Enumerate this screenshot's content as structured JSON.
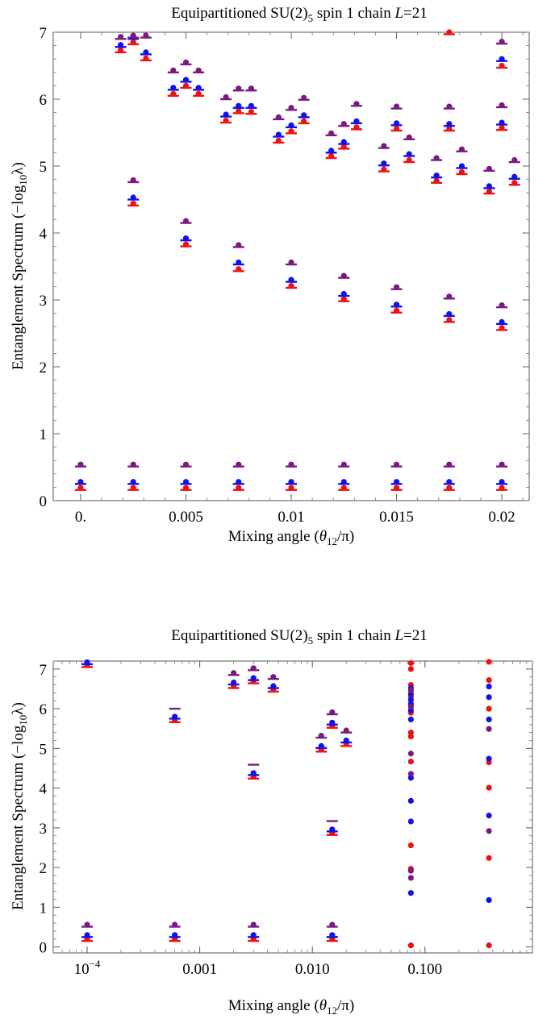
{
  "chart_data": [
    {
      "type": "scatter",
      "title": "Equipartitioned SU(2)₅ spin 1 chain L=21",
      "title_parts": {
        "prefix": "Equipartitioned SU(2)",
        "sub": "5",
        "middle": " spin 1 chain ",
        "italic": "L",
        "suffix": "=21"
      },
      "xlabel": "Mixing angle (θ₁₂/π)",
      "xlabel_parts": {
        "prefix": "Mixing angle (",
        "theta": "θ",
        "sub": "12",
        "suffix": "/π)"
      },
      "ylabel": "Entanglement Spectrum (−log₁₀λ)",
      "ylabel_parts": {
        "prefix": "Entanglement  Spectrum (−log",
        "sub": "10",
        "suffix": "λ)"
      },
      "xscale": "linear",
      "xlim": [
        -0.0013,
        0.0213
      ],
      "ylim": [
        0,
        7
      ],
      "grid": false,
      "xticks": [
        {
          "value": 0,
          "label": "0."
        },
        {
          "value": 0.005,
          "label": "0.005"
        },
        {
          "value": 0.01,
          "label": "0.01"
        },
        {
          "value": 0.015,
          "label": "0.015"
        },
        {
          "value": 0.02,
          "label": "0.02"
        }
      ],
      "yticks": [
        {
          "value": 0,
          "label": "0"
        },
        {
          "value": 1,
          "label": "1"
        },
        {
          "value": 2,
          "label": "2"
        },
        {
          "value": 3,
          "label": "3"
        },
        {
          "value": 4,
          "label": "4"
        },
        {
          "value": 5,
          "label": "5"
        },
        {
          "value": 6,
          "label": "6"
        },
        {
          "value": 7,
          "label": "7"
        }
      ],
      "colors": {
        "red": "#ee1111",
        "blue": "#1111ee",
        "purple": "#7a1a80"
      },
      "markers": {
        "red": "dot-dash",
        "blue": "dot-dash",
        "purple": "dot-dash"
      },
      "series": [
        {
          "color": "red",
          "x": [
            0,
            0.0025,
            0.005,
            0.0075,
            0.01,
            0.0125,
            0.015,
            0.0175,
            0.02
          ],
          "y": [
            0.16,
            0.16,
            0.16,
            0.16,
            0.16,
            0.16,
            0.16,
            0.16,
            0.16
          ]
        },
        {
          "color": "blue",
          "x": [
            0,
            0.0025,
            0.005,
            0.0075,
            0.01,
            0.0125,
            0.015,
            0.0175,
            0.02
          ],
          "y": [
            0.25,
            0.25,
            0.25,
            0.25,
            0.25,
            0.25,
            0.25,
            0.25,
            0.25
          ]
        },
        {
          "color": "purple",
          "x": [
            0,
            0.0025,
            0.005,
            0.0075,
            0.01,
            0.0125,
            0.015,
            0.0175,
            0.02
          ],
          "y": [
            0.51,
            0.51,
            0.51,
            0.51,
            0.51,
            0.51,
            0.51,
            0.51,
            0.51
          ]
        },
        {
          "color": "red",
          "x": [
            0.0025,
            0.005,
            0.0075,
            0.01,
            0.0125,
            0.015,
            0.0175,
            0.02
          ],
          "y": [
            4.41,
            3.8,
            3.43,
            3.18,
            2.98,
            2.81,
            2.67,
            2.55
          ]
        },
        {
          "color": "blue",
          "x": [
            0.0025,
            0.005,
            0.0075,
            0.01,
            0.0125,
            0.015,
            0.0175,
            0.02
          ],
          "y": [
            4.5,
            3.89,
            3.53,
            3.27,
            3.06,
            2.9,
            2.76,
            2.64
          ]
        },
        {
          "color": "purple",
          "x": [
            0.0025,
            0.005,
            0.0075,
            0.01,
            0.0125,
            0.015,
            0.0175,
            0.02
          ],
          "y": [
            4.76,
            4.15,
            3.79,
            3.53,
            3.33,
            3.16,
            3.02,
            2.89
          ]
        },
        {
          "color": "red",
          "x": [
            0.0019,
            0.0044,
            0.0069,
            0.0094,
            0.0119,
            0.0144,
            0.0169,
            0.0194
          ],
          "y": [
            6.7,
            6.05,
            5.65,
            5.35,
            5.12,
            4.92,
            4.75,
            4.59
          ]
        },
        {
          "color": "blue",
          "x": [
            0.0019,
            0.0044,
            0.0069,
            0.0094,
            0.0119,
            0.0144,
            0.0169,
            0.0194
          ],
          "y": [
            6.78,
            6.14,
            5.74,
            5.44,
            5.2,
            5.01,
            4.83,
            4.67
          ]
        },
        {
          "color": "purple",
          "x": [
            0.0019,
            0.0044,
            0.0069,
            0.0094,
            0.0119,
            0.0144,
            0.0169,
            0.0194
          ],
          "y": [
            6.9,
            6.4,
            6.0,
            5.7,
            5.46,
            5.27,
            5.09,
            4.93
          ]
        },
        {
          "color": "red",
          "x": [
            0.0025,
            0.005,
            0.0075,
            0.01,
            0.0125,
            0.015,
            0.0175,
            0.02
          ],
          "y": [
            6.82,
            6.17,
            5.79,
            5.49,
            5.26,
            5.53,
            5.53,
            5.54
          ]
        },
        {
          "color": "blue",
          "x": [
            0.0025,
            0.005,
            0.0075,
            0.01,
            0.0125,
            0.015,
            0.0175,
            0.02
          ],
          "y": [
            6.9,
            6.26,
            5.87,
            5.58,
            5.33,
            5.61,
            5.6,
            5.62
          ]
        },
        {
          "color": "purple",
          "x": [
            0.0025,
            0.005,
            0.0075,
            0.01,
            0.0125,
            0.015,
            0.0175,
            0.02
          ],
          "y": [
            6.92,
            6.52,
            6.13,
            5.84,
            5.6,
            5.86,
            5.86,
            5.88
          ]
        },
        {
          "color": "red",
          "x": [
            0.0031,
            0.0056,
            0.0081,
            0.0106,
            0.0131,
            0.0156,
            0.0181,
            0.0206
          ],
          "y": [
            6.58,
            6.05,
            5.78,
            5.64,
            5.55,
            5.06,
            4.88,
            4.72
          ]
        },
        {
          "color": "blue",
          "x": [
            0.0031,
            0.0056,
            0.0081,
            0.0106,
            0.0131,
            0.0156,
            0.0181,
            0.0206
          ],
          "y": [
            6.67,
            6.14,
            5.87,
            5.73,
            5.64,
            5.15,
            4.97,
            4.81
          ]
        },
        {
          "color": "purple",
          "x": [
            0.0031,
            0.0056,
            0.0081,
            0.0106,
            0.0131,
            0.0156,
            0.0181,
            0.0206
          ],
          "y": [
            6.92,
            6.4,
            6.13,
            5.99,
            5.9,
            5.4,
            5.22,
            5.06
          ]
        },
        {
          "color": "red",
          "x": [
            0.0175,
            0.02
          ],
          "y": [
            6.97,
            6.47
          ]
        },
        {
          "color": "blue",
          "x": [
            0.02
          ],
          "y": [
            6.57
          ]
        },
        {
          "color": "purple",
          "x": [
            0.02
          ],
          "y": [
            6.83
          ]
        }
      ]
    },
    {
      "type": "scatter",
      "title": "Equipartitioned SU(2)₅ spin 1 chain L=21",
      "title_parts": {
        "prefix": "Equipartitioned SU(2)",
        "sub": "5",
        "middle": " spin 1 chain ",
        "italic": "L",
        "suffix": "=21"
      },
      "xlabel": "Mixing angle (θ₁₂/π)",
      "xlabel_parts": {
        "prefix": "Mixing angle (",
        "theta": "θ",
        "sub": "12",
        "suffix": "/π)"
      },
      "ylabel": "Entanglement Spectrum (−log₁₀λ)",
      "ylabel_parts": {
        "prefix": "Entanglement  Spectrum (−log",
        "sub": "10",
        "suffix": "λ)"
      },
      "xscale": "log",
      "xlim": [
        5e-05,
        0.9
      ],
      "ylim": [
        -0.15,
        7.2
      ],
      "grid": false,
      "xticks": [
        {
          "value": 0.0001,
          "label": "10",
          "sup": "−4"
        },
        {
          "value": 0.001,
          "label": "0.001"
        },
        {
          "value": 0.01,
          "label": "0.010"
        },
        {
          "value": 0.1,
          "label": "0.100"
        }
      ],
      "yticks": [
        {
          "value": 0,
          "label": "0"
        },
        {
          "value": 1,
          "label": "1"
        },
        {
          "value": 2,
          "label": "2"
        },
        {
          "value": 3,
          "label": "3"
        },
        {
          "value": 4,
          "label": "4"
        },
        {
          "value": 5,
          "label": "5"
        },
        {
          "value": 6,
          "label": "6"
        },
        {
          "value": 7,
          "label": "7"
        }
      ],
      "colors": {
        "red": "#ee1111",
        "blue": "#1111ee",
        "purple": "#7a1a80"
      },
      "series": [
        {
          "color": "red",
          "marker": "dot-dash",
          "x": [
            0.0001,
            0.0006,
            0.003,
            0.015
          ],
          "y": [
            0.15,
            0.15,
            0.15,
            0.15
          ]
        },
        {
          "color": "blue",
          "marker": "dot-dash",
          "x": [
            0.0001,
            0.0006,
            0.003,
            0.015
          ],
          "y": [
            0.25,
            0.25,
            0.25,
            0.25
          ]
        },
        {
          "color": "purple",
          "marker": "dot-dash",
          "x": [
            0.0001,
            0.0006,
            0.003,
            0.015
          ],
          "y": [
            0.51,
            0.51,
            0.51,
            0.51
          ]
        },
        {
          "color": "red",
          "marker": "dot-dash",
          "x": [
            0.0001,
            0.0006,
            0.002,
            0.003,
            0.0045,
            0.012,
            0.015,
            0.02
          ],
          "y": [
            7.05,
            5.66,
            6.52,
            6.64,
            6.43,
            4.92,
            5.52,
            5.06
          ]
        },
        {
          "color": "blue",
          "marker": "dot-dash",
          "x": [
            0.0001,
            0.0006,
            0.002,
            0.003,
            0.0045,
            0.012,
            0.015,
            0.02
          ],
          "y": [
            7.12,
            5.75,
            6.61,
            6.72,
            6.52,
            5.01,
            5.6,
            5.15
          ]
        },
        {
          "color": "purple",
          "marker": "dot-dash",
          "x": [
            0.002,
            0.003,
            0.0045,
            0.012,
            0.015,
            0.02
          ],
          "y": [
            6.85,
            6.97,
            6.75,
            5.27,
            5.86,
            5.4
          ]
        },
        {
          "color": "purple",
          "marker": "dash",
          "x": [
            0.0006
          ],
          "y": [
            6.0
          ]
        },
        {
          "color": "red",
          "marker": "dot-dash",
          "x": [
            0.003,
            0.015
          ],
          "y": [
            4.24,
            2.82
          ]
        },
        {
          "color": "blue",
          "marker": "dot-dash",
          "x": [
            0.003,
            0.015
          ],
          "y": [
            4.33,
            2.91
          ]
        },
        {
          "color": "purple",
          "marker": "dash",
          "x": [
            0.003,
            0.015
          ],
          "y": [
            4.59,
            3.17
          ]
        },
        {
          "color": "red",
          "marker": "dot",
          "x": [
            0.075,
            0.075,
            0.075,
            0.075,
            0.075,
            0.075,
            0.075,
            0.075,
            0.075,
            0.075,
            0.075
          ],
          "y": [
            0.04,
            1.97,
            2.56,
            4.67,
            5.3,
            5.4,
            5.9,
            6.3,
            6.6,
            7.0,
            7.15
          ]
        },
        {
          "color": "blue",
          "marker": "dot",
          "x": [
            0.075,
            0.075,
            0.075,
            0.075,
            0.075,
            0.075,
            0.075,
            0.075,
            0.075,
            0.075
          ],
          "y": [
            1.36,
            3.16,
            3.68,
            4.26,
            5.73,
            5.96,
            6.12,
            6.22,
            6.37,
            6.52
          ]
        },
        {
          "color": "purple",
          "marker": "dot",
          "x": [
            0.075,
            0.075,
            0.075,
            0.075,
            0.075,
            0.075
          ],
          "y": [
            1.74,
            1.92,
            4.36,
            4.87,
            6.05,
            6.46
          ]
        },
        {
          "color": "red",
          "marker": "dot",
          "x": [
            0.37,
            0.37,
            0.37,
            0.37,
            0.37,
            0.37,
            0.37
          ],
          "y": [
            0.04,
            2.24,
            4.01,
            4.65,
            6.0,
            6.72,
            7.18
          ]
        },
        {
          "color": "blue",
          "marker": "dot",
          "x": [
            0.37,
            0.37,
            0.37,
            0.37,
            0.37,
            0.37
          ],
          "y": [
            1.18,
            3.31,
            4.74,
            5.73,
            6.29,
            6.56
          ]
        },
        {
          "color": "purple",
          "marker": "dot",
          "x": [
            0.37,
            0.37
          ],
          "y": [
            2.92,
            5.49
          ]
        }
      ]
    }
  ]
}
